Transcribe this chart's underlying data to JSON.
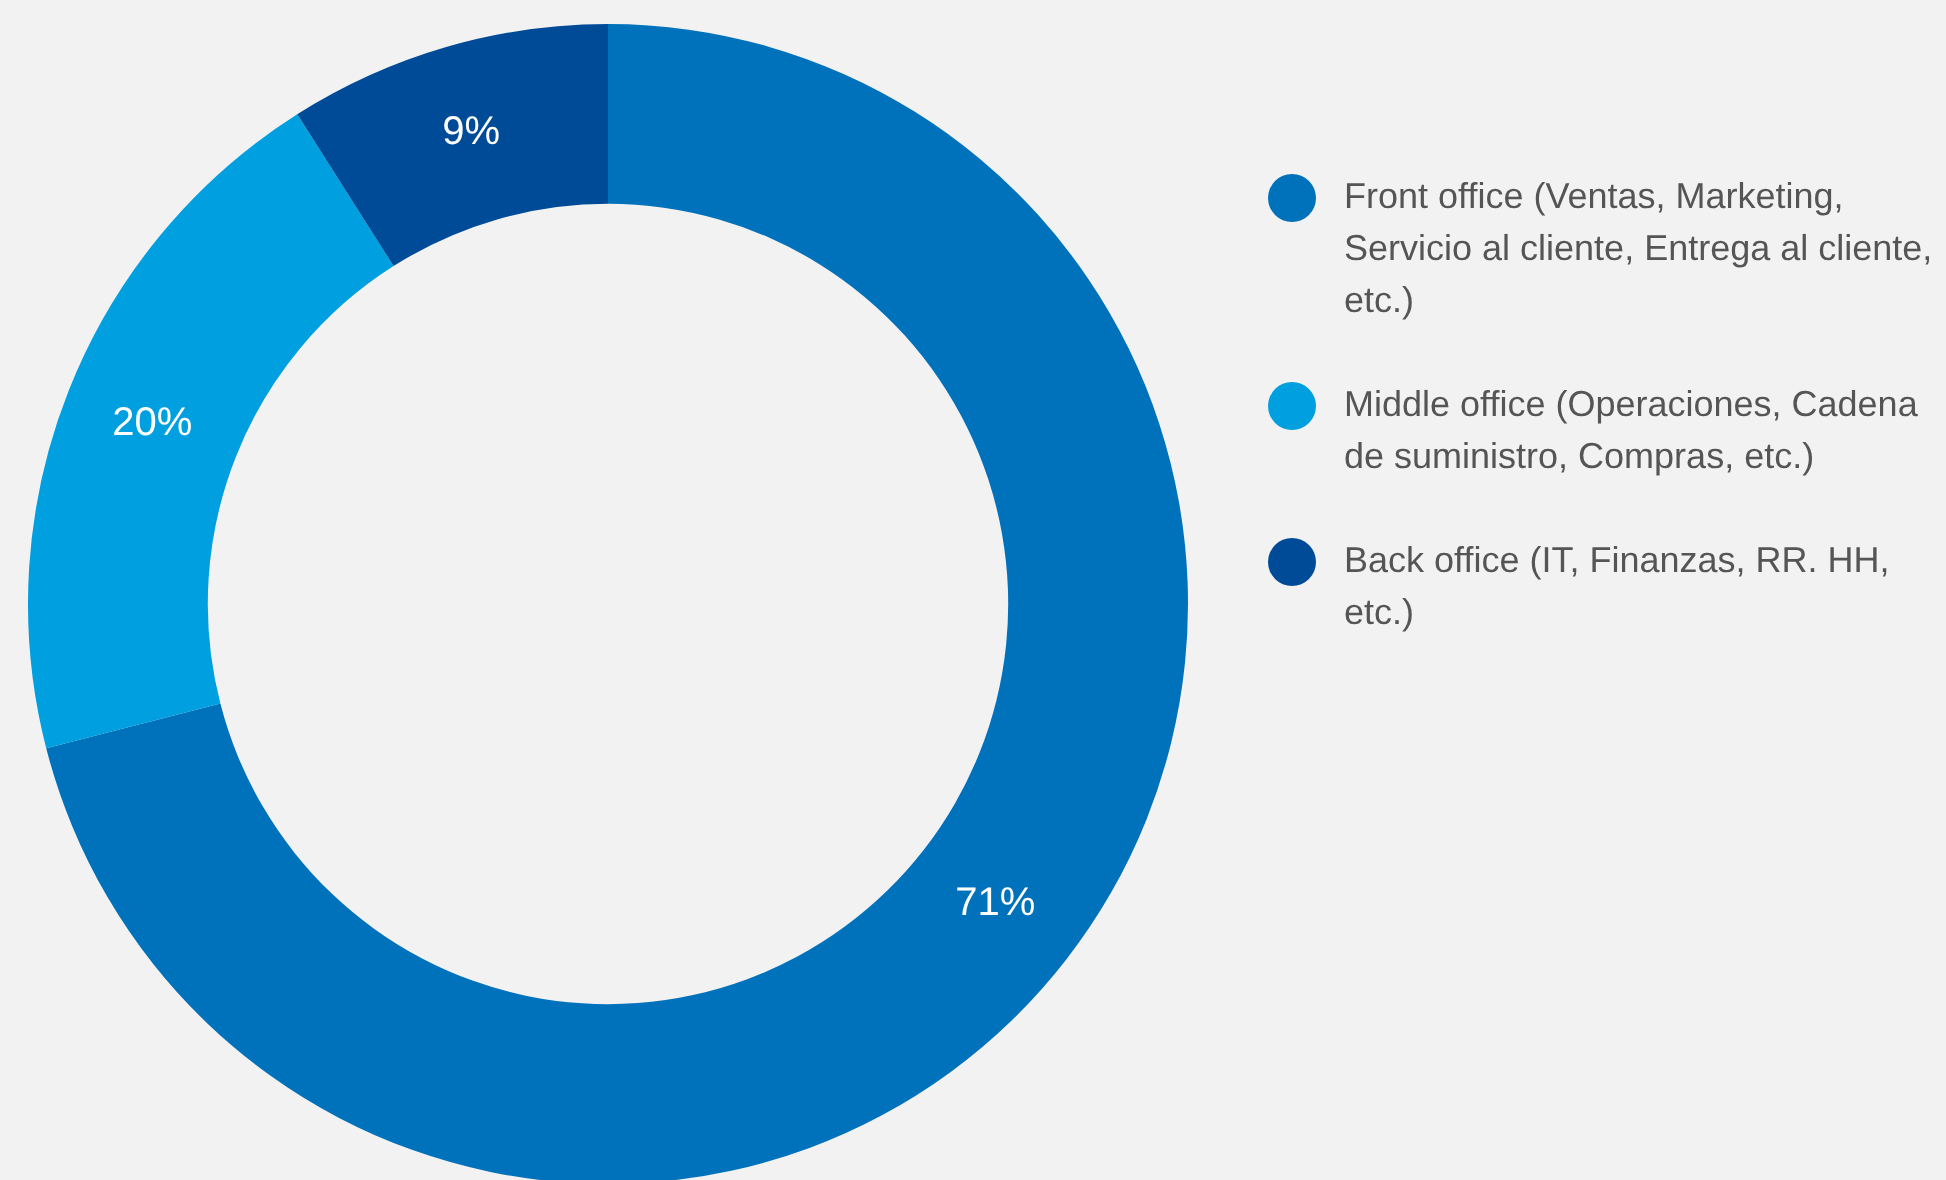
{
  "chart_data": {
    "type": "donut",
    "categories": [
      "Front office (Ventas, Marketing, Servicio al cliente, Entrega al cliente, etc.)",
      "Middle office (Operaciones, Cadena de suministro, Compras, etc.)",
      "Back office (IT, Finanzas, RR. HH, etc.)"
    ],
    "values": [
      71,
      20,
      9
    ],
    "colors": [
      "#0071bb",
      "#009fdf",
      "#004b98"
    ],
    "value_labels": [
      "71%",
      "20%",
      "9%"
    ],
    "legend": "right"
  }
}
